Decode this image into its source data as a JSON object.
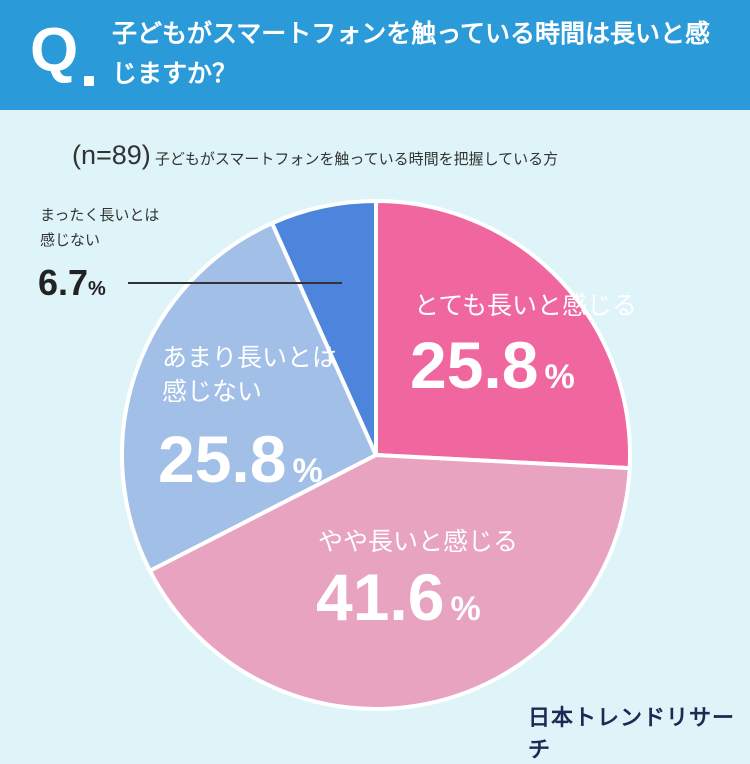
{
  "header": {
    "q_mark": "Q",
    "question": "子どもがスマートフォンを触っている時間は長いと感じますか？"
  },
  "subtitle": {
    "n": "(n=89)",
    "description": "子どもがスマートフォンを触っている時間を把握している方"
  },
  "logo": "日本トレンドリサーチ",
  "chart_data": {
    "type": "pie",
    "title": "子どもがスマートフォンを触っている時間は長いと感じますか？",
    "n": 89,
    "categories": [
      "とても長いと感じる",
      "やや長いと感じる",
      "あまり長いとは感じない",
      "まったく長いとは感じない"
    ],
    "values": [
      25.8,
      41.6,
      25.8,
      6.7
    ],
    "unit": "%",
    "colors": [
      "#f0669e",
      "#e8a3c0",
      "#a2bfe8",
      "#4c85db"
    ],
    "slice_labels": [
      {
        "lines": [
          "とても長いと感じる"
        ],
        "value": "25.8",
        "unit": "%"
      },
      {
        "lines": [
          "やや長いと感じる"
        ],
        "value": "41.6",
        "unit": "%"
      },
      {
        "lines": [
          "あまり長いとは",
          "感じない"
        ],
        "value": "25.8",
        "unit": "%"
      },
      {
        "lines": [
          "まったく長いとは",
          "感じない"
        ],
        "value": "6.7",
        "unit": "%"
      }
    ]
  }
}
